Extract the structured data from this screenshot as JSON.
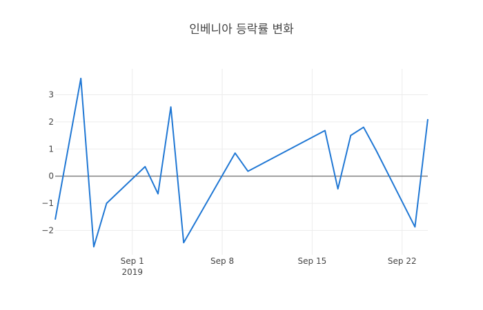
{
  "chart_data": {
    "type": "line",
    "title": "인베니아 등락률 변화",
    "xlabel": "",
    "ylabel": "",
    "x_axis": {
      "type": "date",
      "range": [
        "2019-08-26",
        "2019-09-24"
      ],
      "ticks": [
        {
          "date": "2019-09-01",
          "label": "Sep 1",
          "sublabel": "2019"
        },
        {
          "date": "2019-09-08",
          "label": "Sep 8",
          "sublabel": ""
        },
        {
          "date": "2019-09-15",
          "label": "Sep 15",
          "sublabel": ""
        },
        {
          "date": "2019-09-22",
          "label": "Sep 22",
          "sublabel": ""
        }
      ]
    },
    "y_axis": {
      "range": [
        -2.9,
        3.95
      ],
      "ticks": [
        {
          "value": -2,
          "label": "−2"
        },
        {
          "value": -1,
          "label": "−1"
        },
        {
          "value": 0,
          "label": "0"
        },
        {
          "value": 1,
          "label": "1"
        },
        {
          "value": 2,
          "label": "2"
        },
        {
          "value": 3,
          "label": "3"
        }
      ]
    },
    "grid": true,
    "series": [
      {
        "name": "",
        "color": "#1f77d4",
        "x": [
          "2019-08-26",
          "2019-08-28",
          "2019-08-29",
          "2019-08-30",
          "2019-09-02",
          "2019-09-03",
          "2019-09-04",
          "2019-09-05",
          "2019-09-09",
          "2019-09-10",
          "2019-09-16",
          "2019-09-17",
          "2019-09-18",
          "2019-09-19",
          "2019-09-20",
          "2019-09-23",
          "2019-09-24"
        ],
        "values": [
          -1.6,
          3.6,
          -2.6,
          -1.0,
          0.35,
          -0.65,
          2.55,
          -2.45,
          0.85,
          0.18,
          1.68,
          -0.47,
          1.5,
          1.8,
          0.93,
          -1.87,
          2.1
        ]
      }
    ]
  }
}
